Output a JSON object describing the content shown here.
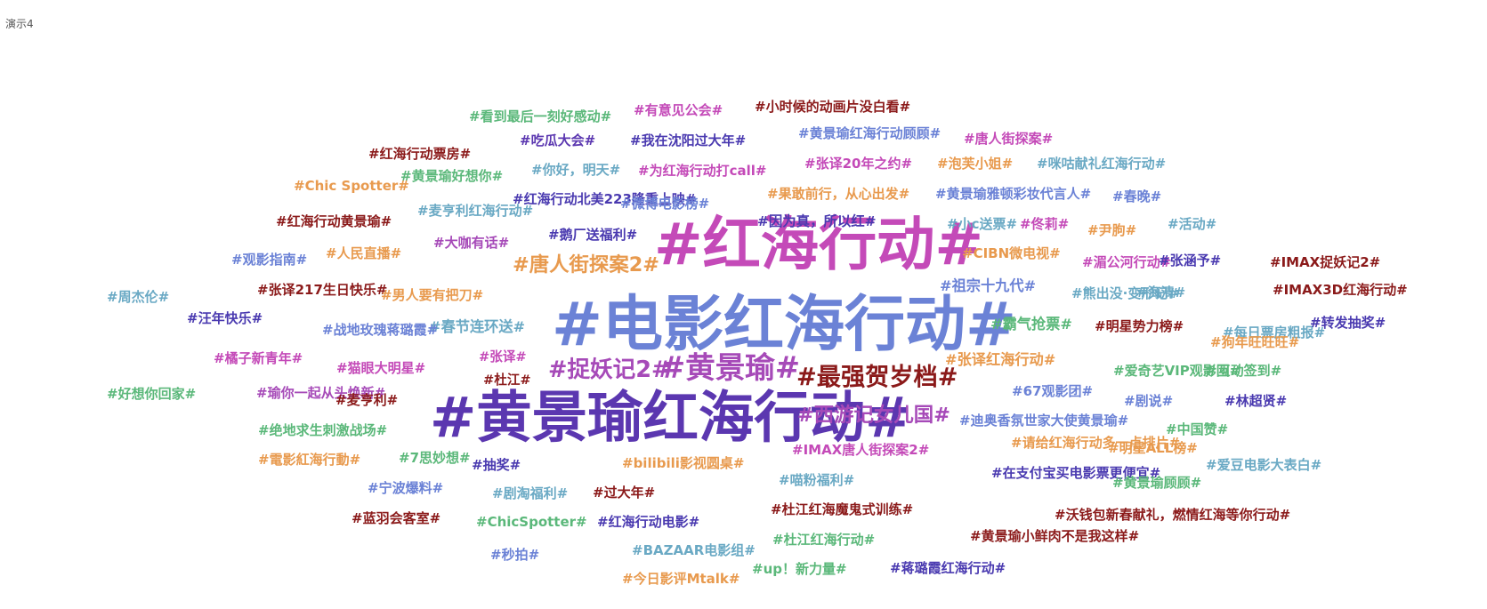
{
  "page_title": "演示4",
  "chart_data": {
    "type": "wordcloud",
    "title": "演示4",
    "palette": [
      "#c44ab8",
      "#5b37b0",
      "#6b82d6",
      "#8b1a1a",
      "#e89a4e",
      "#5bb87a",
      "#6aa9c4",
      "#a64ab8",
      "#4a3ab0",
      "#d6842a",
      "#8a2a2a"
    ],
    "words": [
      {
        "text": "#电影红海行动#",
        "weight": 100,
        "color": "#6b82d6"
      },
      {
        "text": "#红海行动#",
        "weight": 90,
        "color": "#c44ab8"
      },
      {
        "text": "#黄景瑜红海行动#",
        "weight": 80,
        "color": "#5b37b0"
      },
      {
        "text": "#黄景瑜#",
        "weight": 40,
        "color": "#a64ab8"
      },
      {
        "text": "#最强贺岁档#",
        "weight": 32,
        "color": "#8b1a1a"
      },
      {
        "text": "#捉妖记2#",
        "weight": 30,
        "color": "#a64ab8"
      },
      {
        "text": "#唐人街探案2#",
        "weight": 26,
        "color": "#e89a4e"
      },
      {
        "text": "#西游记女儿国#",
        "weight": 26,
        "color": "#a64ab8"
      },
      {
        "text": "#张译红海行动#",
        "weight": 22,
        "color": "#e89a4e"
      },
      {
        "text": "#霸气抢票#",
        "weight": 22,
        "color": "#5bb87a"
      },
      {
        "text": "#祖宗十九代#",
        "weight": 22,
        "color": "#6b82d6"
      },
      {
        "text": "#因为真，所以红#",
        "weight": 21,
        "color": "#4a3ab0"
      },
      {
        "text": "#春节连环送#",
        "weight": 22,
        "color": "#6aa9c4"
      },
      {
        "text": "#张译#",
        "weight": 20,
        "color": "#c44ab8"
      },
      {
        "text": "#杜江#",
        "weight": 20,
        "color": "#8b1a1a"
      },
      {
        "text": "#看到最后一刻好感动#",
        "weight": 18,
        "color": "#5bb87a"
      },
      {
        "text": "#有意见公会#",
        "weight": 18,
        "color": "#c44ab8"
      },
      {
        "text": "#小时候的动画片没白看#",
        "weight": 18,
        "color": "#8b1a1a"
      },
      {
        "text": "#黄景瑜红海行动顾顾#",
        "weight": 18,
        "color": "#6b82d6"
      },
      {
        "text": "#唐人街探案#",
        "weight": 18,
        "color": "#c44ab8"
      },
      {
        "text": "#红海行动票房#",
        "weight": 18,
        "color": "#8b1a1a"
      },
      {
        "text": "#吃瓜大会#",
        "weight": 18,
        "color": "#5b37b0"
      },
      {
        "text": "#我在沈阳过大年#",
        "weight": 18,
        "color": "#4a3ab0"
      },
      {
        "text": "#张译20年之约#",
        "weight": 18,
        "color": "#c44ab8"
      },
      {
        "text": "#泡芙小姐#",
        "weight": 18,
        "color": "#e89a4e"
      },
      {
        "text": "#咪咕献礼红海行动#",
        "weight": 18,
        "color": "#6aa9c4"
      },
      {
        "text": "#Chic Spotter#",
        "weight": 18,
        "color": "#e89a4e"
      },
      {
        "text": "#黄景瑜好想你#",
        "weight": 18,
        "color": "#5bb87a"
      },
      {
        "text": "#你好，明天#",
        "weight": 18,
        "color": "#6aa9c4"
      },
      {
        "text": "#为红海行动打call#",
        "weight": 18,
        "color": "#c44ab8"
      },
      {
        "text": "#果敢前行，从心出发#",
        "weight": 18,
        "color": "#e89a4e"
      },
      {
        "text": "#黄景瑜雅顿彩妆代言人#",
        "weight": 18,
        "color": "#6b82d6"
      },
      {
        "text": "#春晚#",
        "weight": 18,
        "color": "#6b82d6"
      },
      {
        "text": "#红海行动北美223隆重上映#",
        "weight": 18,
        "color": "#4a3ab0"
      },
      {
        "text": "#微博电影榜#",
        "weight": 18,
        "color": "#6b82d6"
      },
      {
        "text": "#红海行动黄景瑜#",
        "weight": 18,
        "color": "#8b1a1a"
      },
      {
        "text": "#麦亨利红海行动#",
        "weight": 18,
        "color": "#6aa9c4"
      },
      {
        "text": "#小c送票#",
        "weight": 18,
        "color": "#6aa9c4"
      },
      {
        "text": "#佟莉#",
        "weight": 18,
        "color": "#c44ab8"
      },
      {
        "text": "#尹朐#",
        "weight": 18,
        "color": "#e89a4e"
      },
      {
        "text": "#活动#",
        "weight": 18,
        "color": "#6aa9c4"
      },
      {
        "text": "#大咖有话#",
        "weight": 18,
        "color": "#a64ab8"
      },
      {
        "text": "#鹅厂送福利#",
        "weight": 18,
        "color": "#4a3ab0"
      },
      {
        "text": "#观影指南#",
        "weight": 18,
        "color": "#6b82d6"
      },
      {
        "text": "#人民直播#",
        "weight": 18,
        "color": "#e89a4e"
      },
      {
        "text": "#CIBN微电视#",
        "weight": 18,
        "color": "#e89a4e"
      },
      {
        "text": "#湄公河行动#",
        "weight": 18,
        "color": "#c44ab8"
      },
      {
        "text": "#张涵予#",
        "weight": 18,
        "color": "#4a3ab0"
      },
      {
        "text": "#IMAX捉妖记2#",
        "weight": 18,
        "color": "#8b1a1a"
      },
      {
        "text": "#周杰伦#",
        "weight": 18,
        "color": "#6aa9c4"
      },
      {
        "text": "#张译217生日快乐#",
        "weight": 18,
        "color": "#8b1a1a"
      },
      {
        "text": "#男人要有把刀#",
        "weight": 18,
        "color": "#e89a4e"
      },
      {
        "text": "#熊出没·变形记#",
        "weight": 18,
        "color": "#6aa9c4"
      },
      {
        "text": "#海清#",
        "weight": 18,
        "color": "#6aa9c4"
      },
      {
        "text": "#IMAX3D红海行动#",
        "weight": 18,
        "color": "#8b1a1a"
      },
      {
        "text": "#汪年快乐#",
        "weight": 18,
        "color": "#4a3ab0"
      },
      {
        "text": "#战地玫瑰蒋璐霞#",
        "weight": 18,
        "color": "#6b82d6"
      },
      {
        "text": "#明星势力榜#",
        "weight": 18,
        "color": "#8b1a1a"
      },
      {
        "text": "#每日票房粗报#",
        "weight": 18,
        "color": "#6aa9c4"
      },
      {
        "text": "#转发抽奖#",
        "weight": 18,
        "color": "#4a3ab0"
      },
      {
        "text": "#橘子新青年#",
        "weight": 18,
        "color": "#c44ab8"
      },
      {
        "text": "#猫眼大明星#",
        "weight": 18,
        "color": "#c44ab8"
      },
      {
        "text": "#爱奇艺VIP观影团#",
        "weight": 18,
        "color": "#5bb87a"
      },
      {
        "text": "#互动签到#",
        "weight": 18,
        "color": "#5bb87a"
      },
      {
        "text": "#好想你回家#",
        "weight": 18,
        "color": "#5bb87a"
      },
      {
        "text": "#瑜你一起从头焕新#",
        "weight": 18,
        "color": "#a64ab8"
      },
      {
        "text": "#麦亨利#",
        "weight": 18,
        "color": "#8b1a1a"
      },
      {
        "text": "#67观影团#",
        "weight": 18,
        "color": "#6b82d6"
      },
      {
        "text": "#剧说#",
        "weight": 18,
        "color": "#6b82d6"
      },
      {
        "text": "#林超贤#",
        "weight": 18,
        "color": "#4a3ab0"
      },
      {
        "text": "#迪奥香氛世家大使黄景瑜#",
        "weight": 18,
        "color": "#6b82d6"
      },
      {
        "text": "#绝地求生刺激战场#",
        "weight": 18,
        "color": "#5bb87a"
      },
      {
        "text": "#IMAX唐人街探案2#",
        "weight": 18,
        "color": "#c44ab8"
      },
      {
        "text": "#请给红海行动多一点排片#",
        "weight": 18,
        "color": "#e89a4e"
      },
      {
        "text": "#明星ALL榜#",
        "weight": 18,
        "color": "#e89a4e"
      },
      {
        "text": "#中国赞#",
        "weight": 18,
        "color": "#5bb87a"
      },
      {
        "text": "#電影紅海行動#",
        "weight": 18,
        "color": "#e89a4e"
      },
      {
        "text": "#7思妙想#",
        "weight": 18,
        "color": "#5bb87a"
      },
      {
        "text": "#抽奖#",
        "weight": 18,
        "color": "#4a3ab0"
      },
      {
        "text": "#bilibili影视圆桌#",
        "weight": 18,
        "color": "#e89a4e"
      },
      {
        "text": "#爱豆电影大表白#",
        "weight": 18,
        "color": "#6aa9c4"
      },
      {
        "text": "#喵粉福利#",
        "weight": 18,
        "color": "#6aa9c4"
      },
      {
        "text": "#在支付宝买电影票更便宜#",
        "weight": 18,
        "color": "#4a3ab0"
      },
      {
        "text": "#黄景瑜顾顾#",
        "weight": 18,
        "color": "#5bb87a"
      },
      {
        "text": "#宁波爆料#",
        "weight": 18,
        "color": "#6b82d6"
      },
      {
        "text": "#剧淘福利#",
        "weight": 18,
        "color": "#6aa9c4"
      },
      {
        "text": "#过大年#",
        "weight": 18,
        "color": "#8b1a1a"
      },
      {
        "text": "#杜江红海魔鬼式训练#",
        "weight": 18,
        "color": "#8b1a1a"
      },
      {
        "text": "#沃钱包新春献礼，燃情红海等你行动#",
        "weight": 18,
        "color": "#8b1a1a"
      },
      {
        "text": "#蓝羽会客室#",
        "weight": 18,
        "color": "#8b1a1a"
      },
      {
        "text": "#ChicSpotter#",
        "weight": 18,
        "color": "#5bb87a"
      },
      {
        "text": "#红海行动电影#",
        "weight": 18,
        "color": "#4a3ab0"
      },
      {
        "text": "#杜江红海行动#",
        "weight": 18,
        "color": "#5bb87a"
      },
      {
        "text": "#黄景瑜小鲜肉不是我这样#",
        "weight": 18,
        "color": "#8b1a1a"
      },
      {
        "text": "#秒拍#",
        "weight": 18,
        "color": "#6b82d6"
      },
      {
        "text": "#BAZAAR电影组#",
        "weight": 18,
        "color": "#6aa9c4"
      },
      {
        "text": "#up！新力量#",
        "weight": 18,
        "color": "#5bb87a"
      },
      {
        "text": "#蒋璐霞红海行动#",
        "weight": 18,
        "color": "#4a3ab0"
      },
      {
        "text": "#今日影评Mtalk#",
        "weight": 18,
        "color": "#e89a4e"
      },
      {
        "text": "#狗年旺旺旺#",
        "weight": 18,
        "color": "#e89a4e"
      }
    ]
  }
}
